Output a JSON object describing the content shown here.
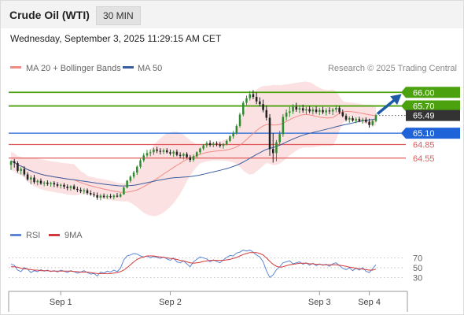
{
  "header": {
    "title": "Crude Oil (WTI)",
    "timeframe": "30 MIN"
  },
  "timestamp": "Wednesday, September 3, 2025 11:29:15 AM CET",
  "legend": [
    {
      "label": "MA 20 + Bollinger Bands",
      "color": "#f08c84"
    },
    {
      "label": "MA 50",
      "color": "#3a5da0"
    }
  ],
  "rsi_legend": [
    {
      "label": "RSI",
      "color": "#5b86d6"
    },
    {
      "label": "9MA",
      "color": "#d43a3a"
    }
  ],
  "copyright": "Research © 2025 Trading Central",
  "colors": {
    "resistance": "#4ca20e",
    "pivot": "#1e63d8",
    "support": "#e05c5c",
    "current": "#333333",
    "bull": "#2e8b2e",
    "bear": "#222222",
    "arrow": "#1f5aa6"
  },
  "chart_data": [
    {
      "type": "candlestick",
      "x_tick_labels": [
        "Sep 1",
        "Sep 2",
        "Sep 3",
        "Sep 4"
      ],
      "ylim": [
        63.0,
        66.3
      ],
      "levels": [
        {
          "value": 66.0,
          "label": "66.00",
          "kind": "resistance"
        },
        {
          "value": 65.7,
          "label": "65.70",
          "kind": "resistance"
        },
        {
          "value": 65.49,
          "label": "65.49",
          "kind": "current"
        },
        {
          "value": 65.1,
          "label": "65.10",
          "kind": "pivot"
        },
        {
          "value": 64.85,
          "label": "64.85",
          "kind": "support"
        },
        {
          "value": 64.55,
          "label": "64.55",
          "kind": "support"
        }
      ],
      "candles": [
        [
          64.4,
          64.5,
          64.29,
          64.48
        ],
        [
          64.48,
          64.53,
          64.34,
          64.44
        ],
        [
          64.44,
          64.48,
          64.23,
          64.27
        ],
        [
          64.27,
          64.35,
          64.19,
          64.31
        ],
        [
          64.31,
          64.37,
          64.15,
          64.19
        ],
        [
          64.19,
          64.24,
          64.05,
          64.08
        ],
        [
          64.08,
          64.17,
          63.97,
          64.12
        ],
        [
          64.12,
          64.18,
          63.98,
          64.02
        ],
        [
          64.02,
          64.08,
          63.95,
          64.05
        ],
        [
          64.05,
          64.1,
          63.96,
          63.99
        ],
        [
          63.99,
          64.04,
          63.93,
          64.01
        ],
        [
          64.01,
          64.06,
          63.94,
          63.98
        ],
        [
          63.98,
          64.03,
          63.92,
          64.0
        ],
        [
          64.0,
          64.04,
          63.91,
          63.97
        ],
        [
          63.97,
          64.02,
          63.9,
          63.94
        ],
        [
          63.94,
          63.99,
          63.88,
          63.96
        ],
        [
          63.96,
          64.0,
          63.87,
          63.92
        ],
        [
          63.92,
          63.97,
          63.84,
          63.89
        ],
        [
          63.89,
          63.95,
          63.83,
          63.93
        ],
        [
          63.93,
          63.97,
          63.85,
          63.87
        ],
        [
          63.87,
          63.92,
          63.8,
          63.85
        ],
        [
          63.85,
          63.9,
          63.78,
          63.82
        ],
        [
          63.82,
          63.88,
          63.76,
          63.84
        ],
        [
          63.84,
          63.88,
          63.74,
          63.78
        ],
        [
          63.78,
          63.84,
          63.72,
          63.75
        ],
        [
          63.75,
          63.8,
          63.69,
          63.73
        ],
        [
          63.73,
          63.79,
          63.63,
          63.68
        ],
        [
          63.68,
          63.76,
          63.62,
          63.72
        ],
        [
          63.72,
          63.77,
          63.66,
          63.69
        ],
        [
          63.69,
          63.75,
          63.65,
          63.71
        ],
        [
          63.71,
          63.76,
          63.66,
          63.69
        ],
        [
          63.69,
          63.75,
          63.64,
          63.72
        ],
        [
          63.72,
          63.78,
          63.68,
          63.7
        ],
        [
          63.7,
          63.78,
          63.68,
          63.75
        ],
        [
          63.75,
          63.92,
          63.74,
          63.9
        ],
        [
          63.9,
          64.07,
          63.88,
          64.05
        ],
        [
          64.05,
          64.17,
          64.01,
          64.14
        ],
        [
          64.14,
          64.27,
          64.1,
          64.23
        ],
        [
          64.23,
          64.39,
          64.18,
          64.36
        ],
        [
          64.36,
          64.54,
          64.32,
          64.5
        ],
        [
          64.5,
          64.66,
          64.46,
          64.61
        ],
        [
          64.61,
          64.73,
          64.57,
          64.66
        ],
        [
          64.66,
          64.74,
          64.59,
          64.68
        ],
        [
          64.68,
          64.78,
          64.62,
          64.74
        ],
        [
          64.74,
          64.8,
          64.66,
          64.71
        ],
        [
          64.71,
          64.77,
          64.63,
          64.69
        ],
        [
          64.69,
          64.76,
          64.64,
          64.72
        ],
        [
          64.72,
          64.77,
          64.65,
          64.68
        ],
        [
          64.68,
          64.74,
          64.61,
          64.65
        ],
        [
          64.65,
          64.72,
          64.58,
          64.69
        ],
        [
          64.69,
          64.74,
          64.59,
          64.62
        ],
        [
          64.62,
          64.68,
          64.55,
          64.6
        ],
        [
          64.6,
          64.67,
          64.52,
          64.64
        ],
        [
          64.64,
          64.68,
          64.54,
          64.57
        ],
        [
          64.57,
          64.62,
          64.46,
          64.51
        ],
        [
          64.51,
          64.63,
          64.47,
          64.59
        ],
        [
          64.59,
          64.7,
          64.56,
          64.68
        ],
        [
          64.68,
          64.78,
          64.64,
          64.76
        ],
        [
          64.76,
          64.86,
          64.72,
          64.83
        ],
        [
          64.83,
          64.92,
          64.78,
          64.88
        ],
        [
          64.88,
          64.94,
          64.8,
          64.84
        ],
        [
          64.84,
          64.91,
          64.79,
          64.87
        ],
        [
          64.87,
          64.92,
          64.81,
          64.85
        ],
        [
          64.85,
          64.9,
          64.78,
          64.82
        ],
        [
          64.82,
          64.88,
          64.76,
          64.86
        ],
        [
          64.86,
          64.96,
          64.83,
          64.93
        ],
        [
          64.93,
          65.06,
          64.9,
          65.03
        ],
        [
          65.03,
          65.15,
          64.98,
          65.1
        ],
        [
          65.1,
          65.3,
          65.07,
          65.26
        ],
        [
          65.26,
          65.55,
          65.22,
          65.51
        ],
        [
          65.51,
          65.81,
          65.47,
          65.77
        ],
        [
          65.77,
          65.93,
          65.72,
          65.87
        ],
        [
          65.87,
          66.03,
          65.82,
          65.96
        ],
        [
          65.96,
          66.05,
          65.85,
          65.9
        ],
        [
          65.9,
          66.0,
          65.74,
          65.8
        ],
        [
          65.8,
          65.89,
          65.69,
          65.74
        ],
        [
          65.74,
          65.84,
          65.56,
          65.61
        ],
        [
          65.61,
          65.71,
          65.38,
          65.44
        ],
        [
          65.44,
          65.52,
          64.6,
          64.75
        ],
        [
          64.75,
          65.1,
          64.45,
          64.66
        ],
        [
          64.66,
          64.95,
          64.48,
          64.9
        ],
        [
          64.9,
          65.15,
          64.85,
          65.08
        ],
        [
          65.08,
          65.52,
          65.02,
          65.46
        ],
        [
          65.46,
          65.62,
          65.38,
          65.55
        ],
        [
          65.55,
          65.68,
          65.46,
          65.58
        ],
        [
          65.58,
          65.74,
          65.52,
          65.68
        ],
        [
          65.68,
          65.77,
          65.57,
          65.62
        ],
        [
          65.62,
          65.72,
          65.54,
          65.65
        ],
        [
          65.65,
          65.73,
          65.55,
          65.6
        ],
        [
          65.6,
          65.68,
          65.52,
          65.63
        ],
        [
          65.63,
          65.7,
          65.54,
          65.58
        ],
        [
          65.58,
          65.67,
          65.51,
          65.62
        ],
        [
          65.62,
          65.69,
          65.53,
          65.57
        ],
        [
          65.57,
          65.66,
          65.5,
          65.61
        ],
        [
          65.61,
          65.68,
          65.52,
          65.56
        ],
        [
          65.56,
          65.65,
          65.49,
          65.6
        ],
        [
          65.6,
          65.67,
          65.52,
          65.58
        ],
        [
          65.58,
          65.66,
          65.5,
          65.62
        ],
        [
          65.62,
          65.72,
          65.56,
          65.66
        ],
        [
          65.66,
          65.7,
          65.52,
          65.56
        ],
        [
          65.56,
          65.62,
          65.45,
          65.48
        ],
        [
          65.48,
          65.53,
          65.36,
          65.4
        ],
        [
          65.4,
          65.47,
          65.33,
          65.43
        ],
        [
          65.43,
          65.48,
          65.35,
          65.38
        ],
        [
          65.38,
          65.45,
          65.32,
          65.41
        ],
        [
          65.41,
          65.46,
          65.34,
          65.37
        ],
        [
          65.37,
          65.44,
          65.31,
          65.4
        ],
        [
          65.4,
          65.45,
          65.32,
          65.35
        ],
        [
          65.35,
          65.42,
          65.22,
          65.28
        ],
        [
          65.28,
          65.4,
          65.25,
          65.37
        ],
        [
          65.37,
          65.53,
          65.34,
          65.49
        ]
      ]
    },
    {
      "type": "line",
      "y_tick_labels": [
        "70",
        "50",
        "30"
      ],
      "y_ticks": [
        70,
        50,
        30
      ],
      "ylim": [
        8,
        95
      ],
      "series": [
        {
          "name": "RSI",
          "values": [
            57,
            55,
            45,
            42,
            50,
            47,
            40,
            44,
            42,
            46,
            43,
            45,
            42,
            44,
            41,
            45,
            43,
            40,
            44,
            42,
            39,
            41,
            44,
            40,
            37,
            38,
            33,
            41,
            39,
            43,
            41,
            45,
            42,
            49,
            66,
            74,
            76,
            79,
            78,
            74,
            72,
            74,
            70,
            73,
            71,
            69,
            72,
            68,
            65,
            70,
            62,
            60,
            64,
            58,
            52,
            62,
            67,
            72,
            70,
            68,
            62,
            66,
            63,
            60,
            66,
            71,
            75,
            74,
            80,
            82,
            86,
            84,
            86,
            82,
            76,
            72,
            62,
            44,
            30,
            35,
            46,
            52,
            60,
            62,
            64,
            58,
            60,
            62,
            57,
            60,
            55,
            59,
            54,
            58,
            55,
            57,
            53,
            58,
            60,
            54,
            49,
            46,
            50,
            44,
            49,
            45,
            50,
            43,
            40,
            48,
            56
          ]
        },
        {
          "name": "9MA",
          "values": [
            52,
            52,
            51,
            49,
            48,
            47,
            46,
            45,
            45,
            44,
            44,
            44,
            43,
            43,
            43,
            43,
            43,
            43,
            43,
            42,
            42,
            41,
            41,
            41,
            40,
            39,
            38,
            38,
            38,
            38,
            38,
            39,
            40,
            42,
            45,
            50,
            56,
            62,
            67,
            70,
            72,
            74,
            74,
            74,
            73,
            72,
            71,
            70,
            69,
            68,
            67,
            65,
            64,
            62,
            60,
            59,
            60,
            61,
            63,
            64,
            65,
            65,
            65,
            65,
            65,
            66,
            67,
            69,
            71,
            74,
            77,
            79,
            81,
            81,
            81,
            79,
            76,
            70,
            63,
            57,
            53,
            51,
            52,
            54,
            56,
            57,
            58,
            59,
            59,
            59,
            58,
            58,
            57,
            57,
            56,
            56,
            56,
            56,
            56,
            55,
            54,
            53,
            51,
            50,
            49,
            48,
            47,
            46,
            45,
            45,
            47
          ]
        }
      ]
    }
  ]
}
